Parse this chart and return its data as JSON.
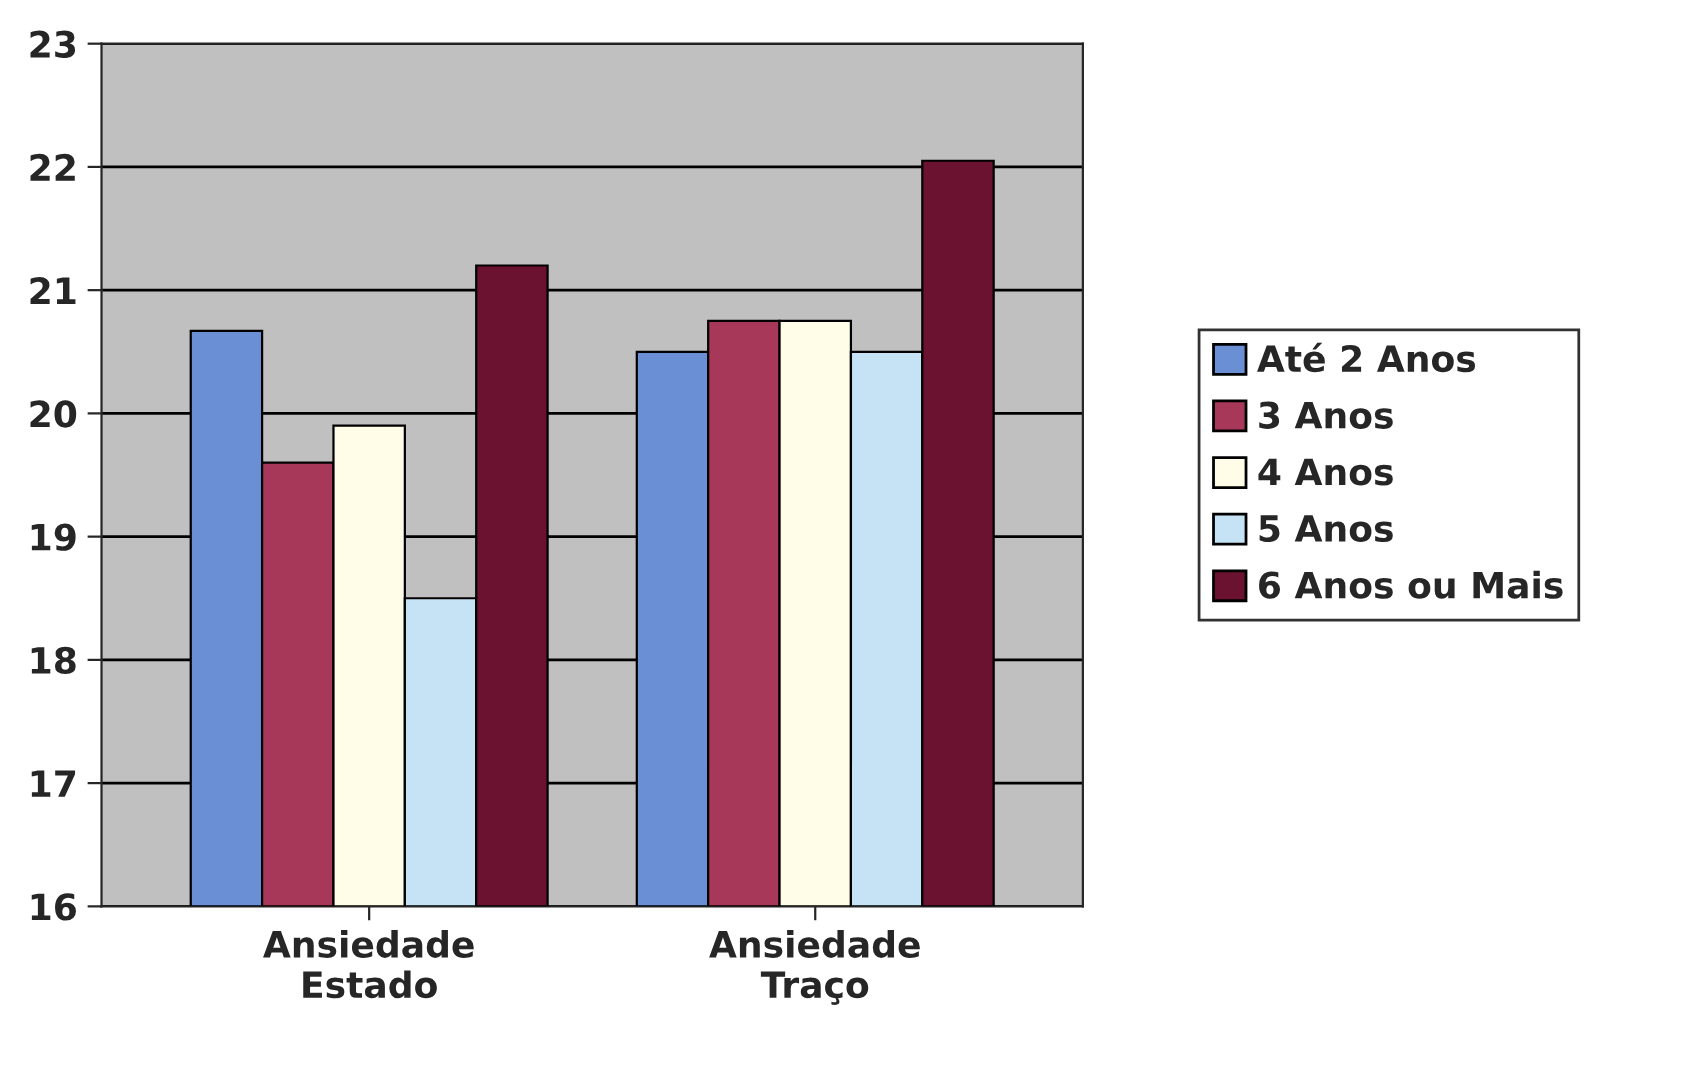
{
  "chart_data": {
    "type": "bar",
    "categories": [
      "Ansiedade\nEstado",
      "Ansiedade\nTraço"
    ],
    "series": [
      {
        "name": "Até 2 Anos",
        "color": "#6b8fd4",
        "values": [
          20.67,
          20.5
        ]
      },
      {
        "name": "3 Anos",
        "color": "#a8385a",
        "values": [
          19.6,
          20.75
        ]
      },
      {
        "name": "4 Anos",
        "color": "#fffde8",
        "values": [
          19.9,
          20.75
        ]
      },
      {
        "name": "5 Anos",
        "color": "#c5e3f5",
        "values": [
          18.5,
          20.5
        ]
      },
      {
        "name": "6 Anos ou Mais",
        "color": "#6a1230",
        "values": [
          21.2,
          22.05
        ]
      }
    ],
    "ylim": [
      16,
      23
    ],
    "yticks": [
      16,
      17,
      18,
      19,
      20,
      21,
      22,
      23
    ],
    "grid": "y",
    "legend": "right"
  }
}
